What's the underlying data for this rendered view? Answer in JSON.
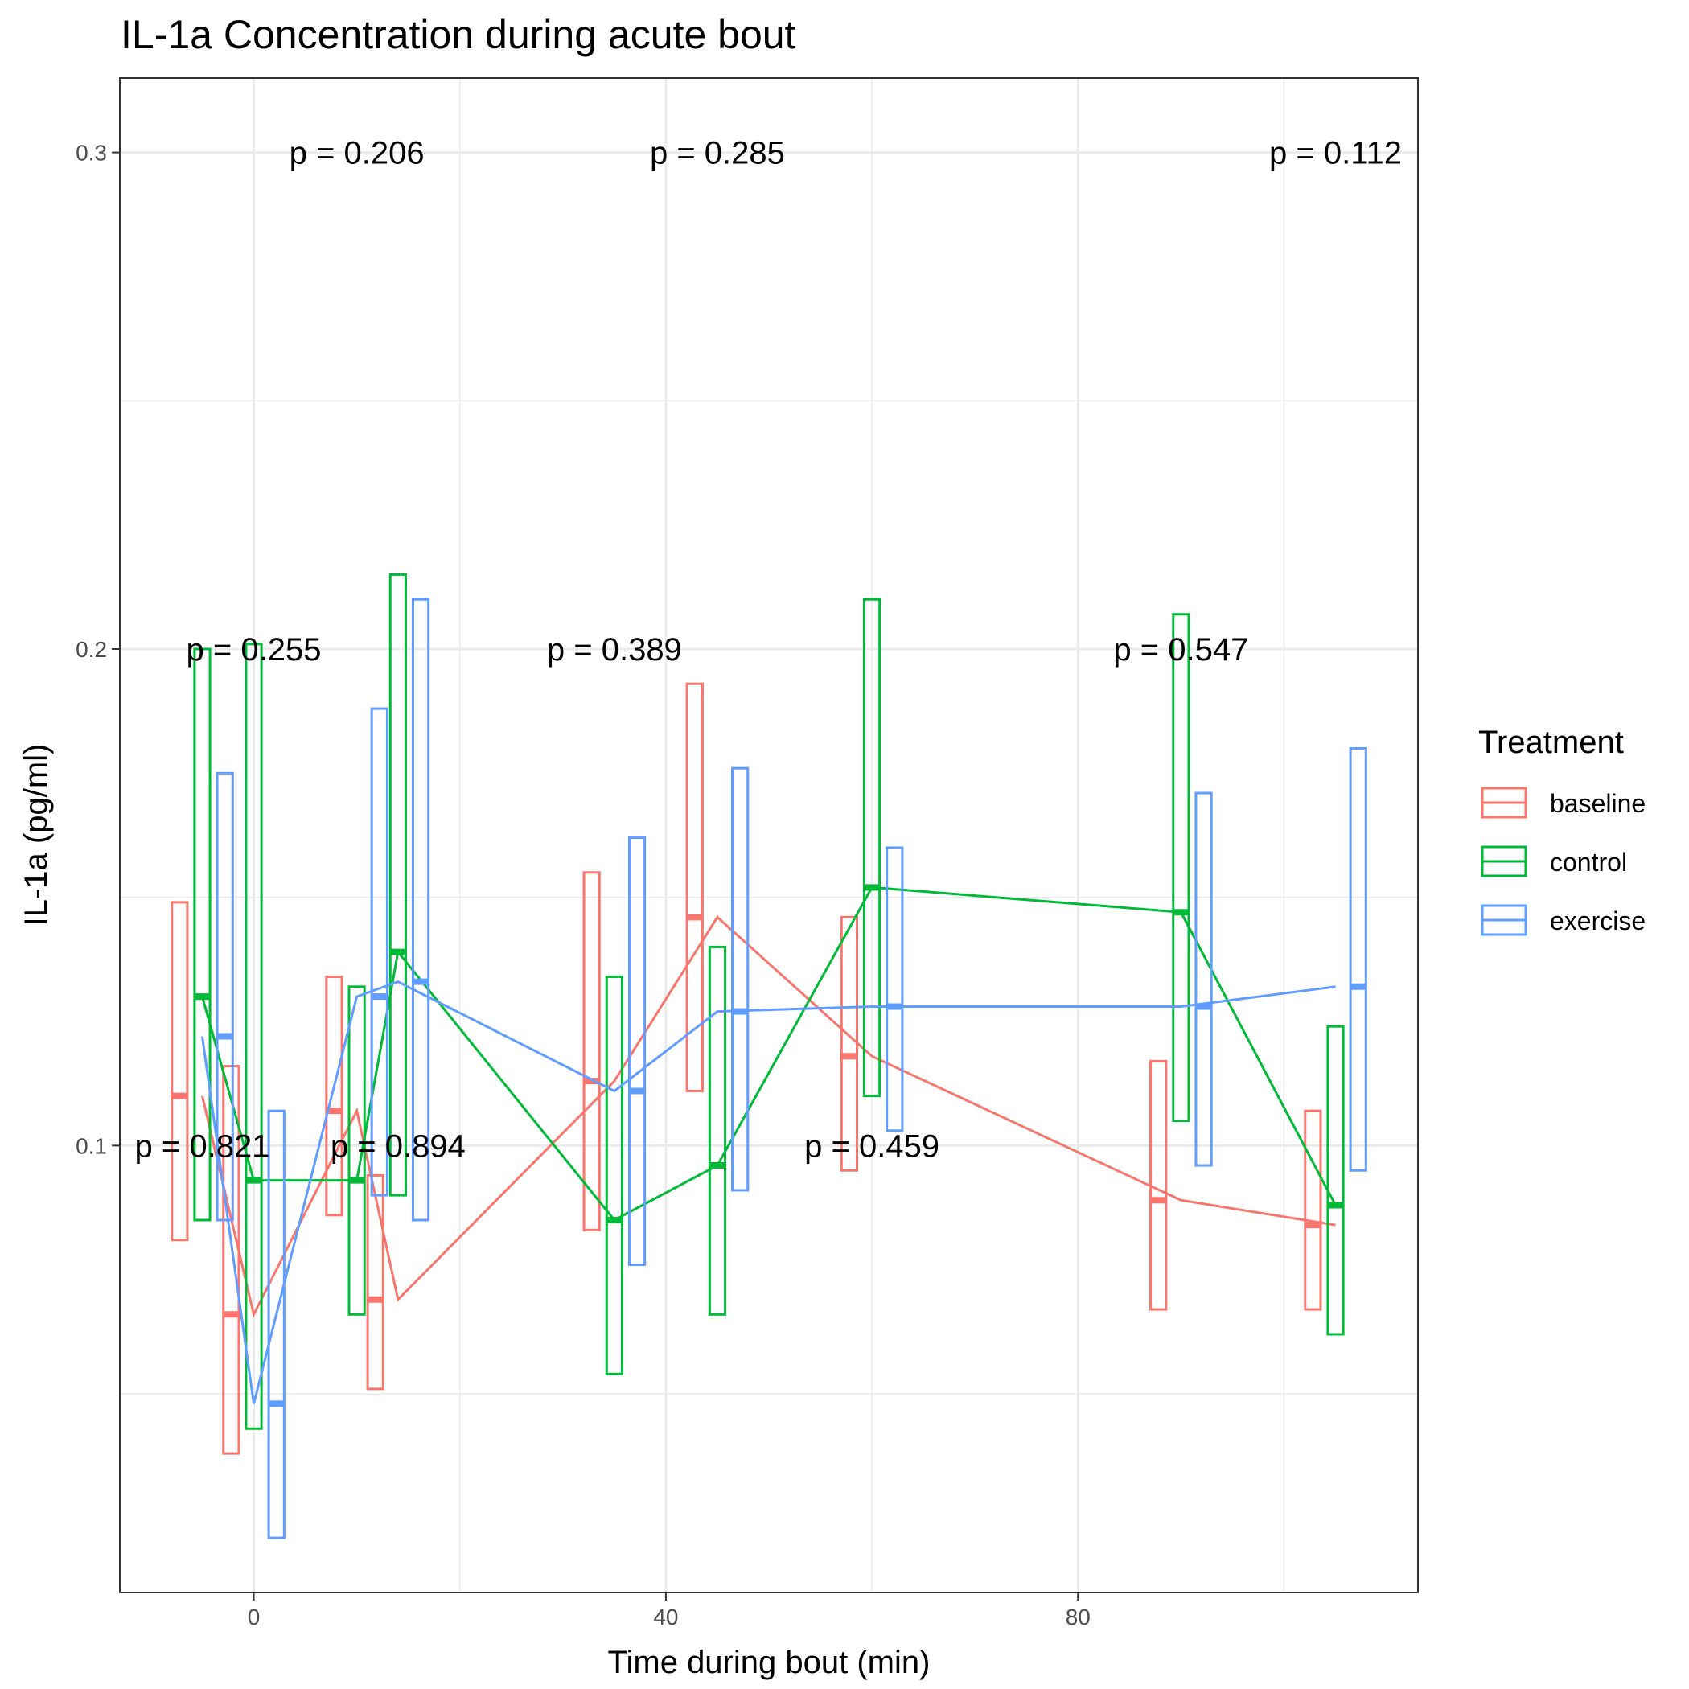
{
  "chart_data": {
    "type": "line",
    "title": "IL-1a Concentration during acute bout",
    "xlabel": "Time during bout (min)",
    "ylabel": "IL-1a (pg/ml)",
    "xlim": [
      -13,
      113
    ],
    "ylim": [
      0.01,
      0.315
    ],
    "x_ticks": [
      0,
      40,
      80
    ],
    "y_ticks": [
      0.1,
      0.2,
      0.3
    ],
    "x_tick_labels": [
      "0",
      "40",
      "80"
    ],
    "y_tick_labels": [
      "0.1",
      "0.2",
      "0.3"
    ],
    "grid": true,
    "legend": {
      "title": "Treatment",
      "position": "right",
      "entries": [
        "baseline",
        "control",
        "exercise"
      ]
    },
    "colors": {
      "baseline": "#F8766D",
      "control": "#00BA38",
      "exercise": "#619CFF"
    },
    "x_groups": [
      -5,
      10,
      35,
      60,
      90,
      105
    ],
    "series": [
      {
        "name": "baseline",
        "color": "#F8766D",
        "points": [
          {
            "x": -5,
            "y": 0.11,
            "lo": 0.081,
            "hi": 0.149
          },
          {
            "x": 0,
            "y": 0.066,
            "lo": 0.038,
            "hi": 0.116
          },
          {
            "x": 10,
            "y": 0.107,
            "lo": 0.086,
            "hi": 0.134
          },
          {
            "x": 14,
            "y": 0.069,
            "lo": 0.051,
            "hi": 0.094
          },
          {
            "x": 35,
            "y": 0.113,
            "lo": 0.083,
            "hi": 0.155
          },
          {
            "x": 45,
            "y": 0.146,
            "lo": 0.111,
            "hi": 0.193
          },
          {
            "x": 60,
            "y": 0.118,
            "lo": 0.095,
            "hi": 0.146
          },
          {
            "x": 90,
            "y": 0.089,
            "lo": 0.067,
            "hi": 0.117
          },
          {
            "x": 105,
            "y": 0.084,
            "lo": 0.067,
            "hi": 0.107
          }
        ]
      },
      {
        "name": "control",
        "color": "#00BA38",
        "points": [
          {
            "x": -5,
            "y": 0.13,
            "lo": 0.085,
            "hi": 0.2
          },
          {
            "x": 0,
            "y": 0.093,
            "lo": 0.043,
            "hi": 0.201
          },
          {
            "x": 10,
            "y": 0.093,
            "lo": 0.066,
            "hi": 0.132
          },
          {
            "x": 14,
            "y": 0.139,
            "lo": 0.09,
            "hi": 0.215
          },
          {
            "x": 35,
            "y": 0.085,
            "lo": 0.054,
            "hi": 0.134
          },
          {
            "x": 45,
            "y": 0.096,
            "lo": 0.066,
            "hi": 0.14
          },
          {
            "x": 60,
            "y": 0.152,
            "lo": 0.11,
            "hi": 0.21
          },
          {
            "x": 90,
            "y": 0.147,
            "lo": 0.105,
            "hi": 0.207
          },
          {
            "x": 105,
            "y": 0.088,
            "lo": 0.062,
            "hi": 0.124
          }
        ]
      },
      {
        "name": "exercise",
        "color": "#619CFF",
        "points": [
          {
            "x": -5,
            "y": 0.122,
            "lo": 0.085,
            "hi": 0.175
          },
          {
            "x": 0,
            "y": 0.048,
            "lo": 0.021,
            "hi": 0.107
          },
          {
            "x": 10,
            "y": 0.13,
            "lo": 0.09,
            "hi": 0.188
          },
          {
            "x": 14,
            "y": 0.133,
            "lo": 0.085,
            "hi": 0.21
          },
          {
            "x": 35,
            "y": 0.111,
            "lo": 0.076,
            "hi": 0.162
          },
          {
            "x": 45,
            "y": 0.127,
            "lo": 0.091,
            "hi": 0.176
          },
          {
            "x": 60,
            "y": 0.128,
            "lo": 0.103,
            "hi": 0.16
          },
          {
            "x": 90,
            "y": 0.128,
            "lo": 0.096,
            "hi": 0.171
          },
          {
            "x": 105,
            "y": 0.132,
            "lo": 0.095,
            "hi": 0.18
          }
        ]
      }
    ],
    "annotations": [
      {
        "text": "p = 0.206",
        "x": 10,
        "y": 0.3
      },
      {
        "text": "p = 0.285",
        "x": 45,
        "y": 0.3
      },
      {
        "text": "p = 0.112",
        "x": 105,
        "y": 0.3
      },
      {
        "text": "p = 0.255",
        "x": 0,
        "y": 0.2
      },
      {
        "text": "p = 0.389",
        "x": 35,
        "y": 0.2
      },
      {
        "text": "p = 0.547",
        "x": 90,
        "y": 0.2
      },
      {
        "text": "p = 0.821",
        "x": -5,
        "y": 0.1
      },
      {
        "text": "p = 0.894",
        "x": 14,
        "y": 0.1
      },
      {
        "text": "p = 0.459",
        "x": 60,
        "y": 0.1
      }
    ]
  }
}
